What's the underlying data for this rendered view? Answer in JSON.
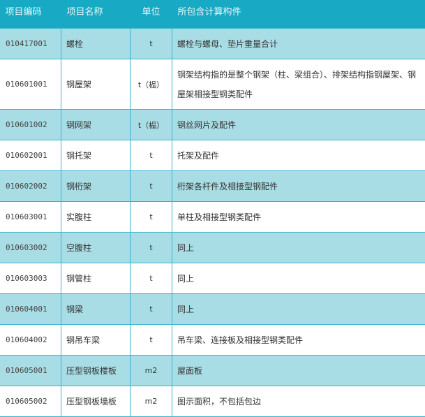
{
  "colors": {
    "header": "#18aac4",
    "alt_row": "#a9dde5",
    "border": "#36b4cb"
  },
  "headers": [
    "项目编码",
    "项目名称",
    "单位",
    "所包含计算构件"
  ],
  "rows": [
    {
      "code": "010417001",
      "name": "螺栓",
      "unit": "t",
      "desc": "螺栓与螺母、垫片重量合计"
    },
    {
      "code": "010601001",
      "name": "钢屋架",
      "unit": "t（榀）",
      "desc": "钢架结构指的是整个钢架（柱、梁组合）、排架结构指钢屋架、钢屋架相接型钢类配件"
    },
    {
      "code": "010601002",
      "name": "钢网架",
      "unit": "t（榀）",
      "desc": "钢丝网片及配件"
    },
    {
      "code": "010602001",
      "name": "钢托架",
      "unit": "t",
      "desc": "托架及配件"
    },
    {
      "code": "010602002",
      "name": "钢桁架",
      "unit": "t",
      "desc": "桁架各杆件及相接型钢配件"
    },
    {
      "code": "010603001",
      "name": "实腹柱",
      "unit": "t",
      "desc": "单柱及相接型钢类配件"
    },
    {
      "code": "010603002",
      "name": "空腹柱",
      "unit": "t",
      "desc": "同上"
    },
    {
      "code": "010603003",
      "name": "钢管柱",
      "unit": "t",
      "desc": "同上"
    },
    {
      "code": "010604001",
      "name": "钢梁",
      "unit": "t",
      "desc": "同上"
    },
    {
      "code": "010604002",
      "name": "钢吊车梁",
      "unit": "t",
      "desc": "吊车梁、连接板及相接型钢类配件"
    },
    {
      "code": "010605001",
      "name": "压型钢板楼板",
      "unit": "m2",
      "desc": "屋面板"
    },
    {
      "code": "010605002",
      "name": "压型钢板墙板",
      "unit": "m2",
      "desc": "图示面积，不包括包边"
    }
  ]
}
